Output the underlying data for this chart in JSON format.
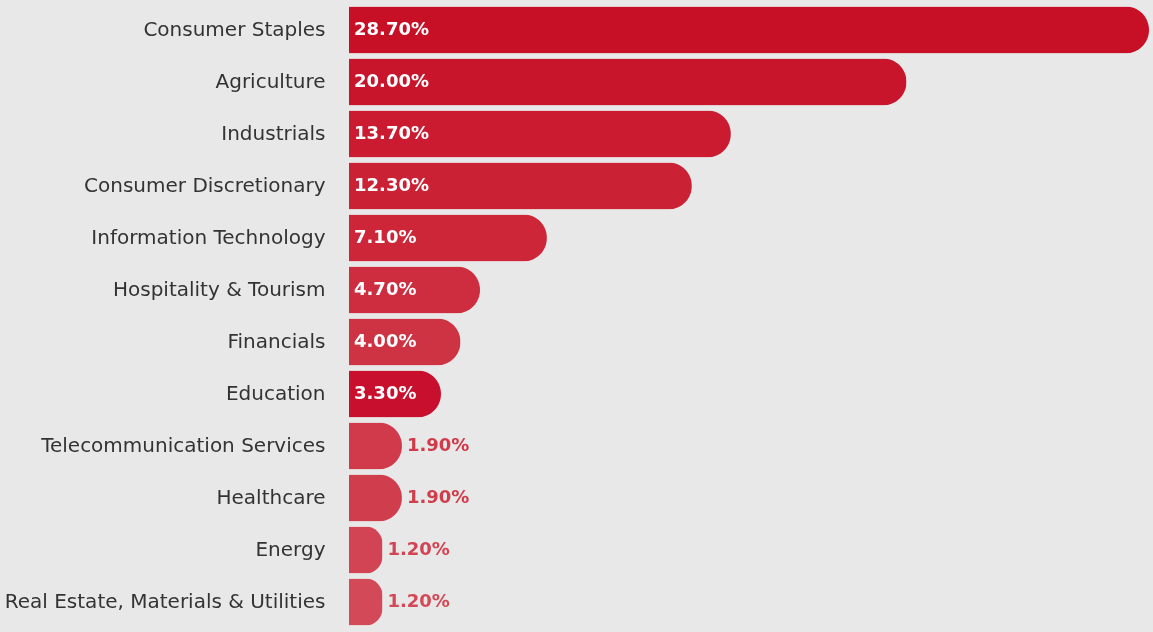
{
  "chart_data": {
    "type": "bar",
    "orientation": "horizontal",
    "categories": [
      "Consumer Staples",
      "Agriculture",
      "Industrials",
      "Consumer Discretionary",
      "Information Technology",
      "Hospitality & Tourism",
      "Financials",
      "Education",
      "Telecommunication Services",
      "Healthcare",
      "Energy",
      "Real Estate, Materials & Utilities"
    ],
    "values": [
      28.7,
      20.0,
      13.7,
      12.3,
      7.1,
      4.7,
      4.0,
      3.3,
      1.9,
      1.9,
      1.2,
      1.2
    ],
    "value_labels": [
      "28.70%",
      "20.00%",
      "13.70%",
      "12.30%",
      "7.10%",
      "4.70%",
      "4.00%",
      "3.30%",
      "1.90%",
      "1.90%",
      "1.20%",
      "1.20%"
    ],
    "colors": [
      "#c70f25",
      "#c9152c",
      "#ca1b30",
      "#cb2135",
      "#cc2638",
      "#cd2d3f",
      "#ce3343",
      "#c8102e",
      "#d03a4a",
      "#d03e4d",
      "#d24453",
      "#d34957"
    ],
    "grid": false
  }
}
